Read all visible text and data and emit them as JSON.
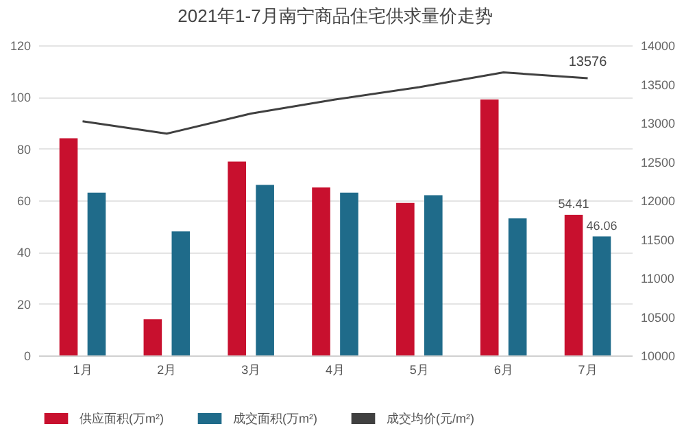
{
  "chart_data": {
    "type": "bar",
    "title": "2021年1-7月南宁商品住宅供求量价走势",
    "categories": [
      "1月",
      "2月",
      "3月",
      "4月",
      "5月",
      "6月",
      "7月"
    ],
    "series": [
      {
        "name": "供应面积(万m²)",
        "color": "#c8102e",
        "values": [
          84,
          14,
          75,
          65,
          59,
          99,
          54.41
        ],
        "value_labels": [
          null,
          null,
          null,
          null,
          null,
          null,
          "54.41"
        ]
      },
      {
        "name": "成交面积(万m²)",
        "color": "#1f6b8a",
        "values": [
          63,
          48,
          66,
          63,
          62,
          53,
          46.06
        ],
        "value_labels": [
          null,
          null,
          null,
          null,
          null,
          null,
          "46.06"
        ]
      },
      {
        "name": "成交均价(元/m²)",
        "type": "line",
        "axis": "y2",
        "color": "#404040",
        "values": [
          13020,
          12860,
          13120,
          13300,
          13460,
          13650,
          13576
        ],
        "value_labels": [
          null,
          null,
          null,
          null,
          null,
          null,
          "13576"
        ]
      }
    ],
    "ylim": [
      0,
      120
    ],
    "yticks": [
      0,
      20,
      40,
      60,
      80,
      100,
      120
    ],
    "y2lim": [
      10000,
      14000
    ],
    "y2ticks": [
      10000,
      10500,
      11000,
      11500,
      12000,
      12500,
      13000,
      13500,
      14000
    ],
    "grid": "y",
    "legend": "bottom",
    "marker": "none",
    "line_style": "solid"
  }
}
